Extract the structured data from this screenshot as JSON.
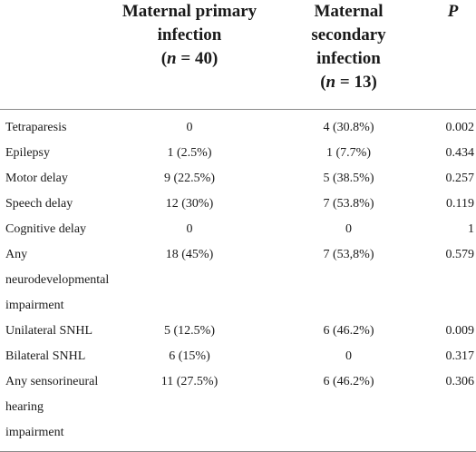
{
  "header": {
    "col1": {
      "line1": "Maternal primary",
      "line2": "infection",
      "n_label": "n",
      "n_rest": " = 40)"
    },
    "col2": {
      "line1": "Maternal secondary",
      "line2": "infection",
      "n_label": "n",
      "n_rest": " = 13)"
    },
    "col3": "P"
  },
  "rows": [
    {
      "label": [
        "Tetraparesis"
      ],
      "primary": "0",
      "secondary": "4 (30.8%)",
      "p": "0.002"
    },
    {
      "label": [
        "Epilepsy"
      ],
      "primary": "1 (2.5%)",
      "secondary": "1 (7.7%)",
      "p": "0.434"
    },
    {
      "label": [
        "Motor delay"
      ],
      "primary": "9 (22.5%)",
      "secondary": "5 (38.5%)",
      "p": "0.257"
    },
    {
      "label": [
        "Speech delay"
      ],
      "primary": "12 (30%)",
      "secondary": "7 (53.8%)",
      "p": "0.119"
    },
    {
      "label": [
        "Cognitive delay"
      ],
      "primary": "0",
      "secondary": "0",
      "p": "1"
    },
    {
      "label": [
        "Any",
        "neurodevelopmental",
        "impairment"
      ],
      "primary": "18 (45%)",
      "secondary": "7 (53,8%)",
      "p": "0.579"
    },
    {
      "label": [
        "Unilateral SNHL"
      ],
      "primary": "5 (12.5%)",
      "secondary": "6 (46.2%)",
      "p": "0.009"
    },
    {
      "label": [
        "Bilateral SNHL"
      ],
      "primary": "6 (15%)",
      "secondary": "0",
      "p": "0.317"
    },
    {
      "label": [
        "Any sensorineural",
        "hearing impairment"
      ],
      "primary": "11 (27.5%)",
      "secondary": "6 (46.2%)",
      "p": "0.306"
    }
  ]
}
